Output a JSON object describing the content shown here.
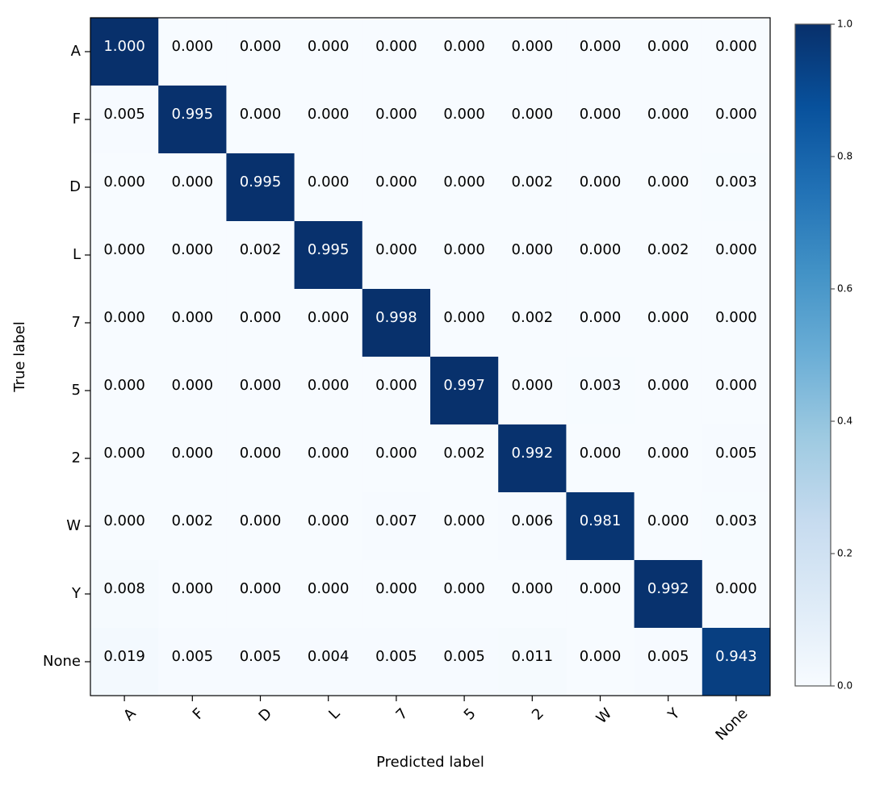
{
  "chart_data": {
    "type": "heatmap",
    "xlabel": "Predicted label",
    "ylabel": "True label",
    "x_categories": [
      "A",
      "F",
      "D",
      "L",
      "7",
      "5",
      "2",
      "W",
      "Y",
      "None"
    ],
    "y_categories": [
      "A",
      "F",
      "D",
      "L",
      "7",
      "5",
      "2",
      "W",
      "Y",
      "None"
    ],
    "values": [
      [
        "1.000",
        "0.000",
        "0.000",
        "0.000",
        "0.000",
        "0.000",
        "0.000",
        "0.000",
        "0.000",
        "0.000"
      ],
      [
        "0.005",
        "0.995",
        "0.000",
        "0.000",
        "0.000",
        "0.000",
        "0.000",
        "0.000",
        "0.000",
        "0.000"
      ],
      [
        "0.000",
        "0.000",
        "0.995",
        "0.000",
        "0.000",
        "0.000",
        "0.002",
        "0.000",
        "0.000",
        "0.003"
      ],
      [
        "0.000",
        "0.000",
        "0.002",
        "0.995",
        "0.000",
        "0.000",
        "0.000",
        "0.000",
        "0.002",
        "0.000"
      ],
      [
        "0.000",
        "0.000",
        "0.000",
        "0.000",
        "0.998",
        "0.000",
        "0.002",
        "0.000",
        "0.000",
        "0.000"
      ],
      [
        "0.000",
        "0.000",
        "0.000",
        "0.000",
        "0.000",
        "0.997",
        "0.000",
        "0.003",
        "0.000",
        "0.000"
      ],
      [
        "0.000",
        "0.000",
        "0.000",
        "0.000",
        "0.000",
        "0.002",
        "0.992",
        "0.000",
        "0.000",
        "0.005"
      ],
      [
        "0.000",
        "0.002",
        "0.000",
        "0.000",
        "0.007",
        "0.000",
        "0.006",
        "0.981",
        "0.000",
        "0.003"
      ],
      [
        "0.008",
        "0.000",
        "0.000",
        "0.000",
        "0.000",
        "0.000",
        "0.000",
        "0.000",
        "0.992",
        "0.000"
      ],
      [
        "0.019",
        "0.005",
        "0.005",
        "0.004",
        "0.005",
        "0.005",
        "0.011",
        "0.000",
        "0.005",
        "0.943"
      ]
    ],
    "colorbar": {
      "range": [
        0.0,
        1.0
      ],
      "ticks": [
        "0.0",
        "0.2",
        "0.4",
        "0.6",
        "0.8",
        "1.0"
      ],
      "colormap": "Blues"
    },
    "text_colors": {
      "dark_cell": "#ffffff",
      "light_cell": "#000000"
    }
  }
}
